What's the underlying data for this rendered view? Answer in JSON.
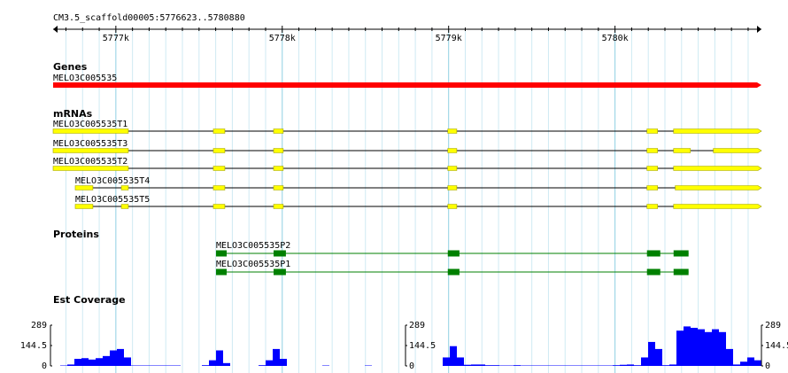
{
  "ruler": {
    "label": "CM3.5_scaffold00005:5776623..5780880",
    "start": 5776623,
    "end": 5780880,
    "ticks": [
      {
        "value": 5777000,
        "label": "5777k"
      },
      {
        "value": 5778000,
        "label": "5778k"
      },
      {
        "value": 5779000,
        "label": "5779k"
      },
      {
        "value": 5780000,
        "label": "5780k"
      }
    ],
    "minor_ticks": [
      5776700,
      5776800,
      5776900,
      5777100,
      5777200,
      5777300,
      5777400,
      5777500,
      5777600,
      5777700,
      5777800,
      5777900,
      5778100,
      5778200,
      5778300,
      5778400,
      5778500,
      5778600,
      5778700,
      5778800,
      5778900,
      5779100,
      5779200,
      5779300,
      5779400,
      5779500,
      5779600,
      5779700,
      5779800,
      5779900,
      5780100,
      5780200,
      5780300,
      5780400,
      5780500,
      5780600,
      5780700,
      5780800
    ]
  },
  "tracks": {
    "genes": {
      "title": "Genes",
      "color": "#ff0000",
      "features": [
        {
          "name": "MELO3C005535",
          "start": 5776623,
          "end": 5780880
        }
      ]
    },
    "mrnas": {
      "title": "mRNAs",
      "color": "#ffff00",
      "features": [
        {
          "name": "MELO3C005535T1",
          "exons": [
            [
              5776623,
              5777075
            ],
            [
              5777586,
              5777655
            ],
            [
              5777948,
              5778006
            ],
            [
              5778995,
              5779049
            ],
            [
              5780192,
              5780256
            ],
            [
              5780352,
              5780880
            ]
          ]
        },
        {
          "name": "MELO3C005535T3",
          "exons": [
            [
              5776623,
              5777075
            ],
            [
              5777586,
              5777655
            ],
            [
              5777948,
              5778006
            ],
            [
              5778995,
              5779049
            ],
            [
              5780192,
              5780256
            ],
            [
              5780352,
              5780453
            ],
            [
              5780591,
              5780880
            ]
          ]
        },
        {
          "name": "MELO3C005535T2",
          "exons": [
            [
              5776623,
              5777075
            ],
            [
              5777586,
              5777655
            ],
            [
              5777948,
              5778006
            ],
            [
              5778995,
              5779049
            ],
            [
              5780192,
              5780256
            ],
            [
              5780352,
              5780880
            ]
          ]
        },
        {
          "name": "MELO3C005535T4",
          "exons": [
            [
              5776756,
              5776862
            ],
            [
              5777033,
              5777075
            ],
            [
              5777586,
              5777655
            ],
            [
              5777948,
              5778006
            ],
            [
              5778995,
              5779049
            ],
            [
              5780192,
              5780256
            ],
            [
              5780362,
              5780880
            ]
          ]
        },
        {
          "name": "MELO3C005535T5",
          "exons": [
            [
              5776756,
              5776862
            ],
            [
              5777033,
              5777075
            ],
            [
              5777586,
              5777655
            ],
            [
              5777948,
              5778006
            ],
            [
              5778995,
              5779049
            ],
            [
              5780192,
              5780256
            ],
            [
              5780352,
              5780880
            ]
          ]
        }
      ]
    },
    "proteins": {
      "title": "Proteins",
      "color": "#008000",
      "features": [
        {
          "name": "MELO3C005535P2",
          "segments": [
            [
              5777602,
              5777666
            ],
            [
              5777948,
              5778022
            ],
            [
              5778995,
              5779065
            ],
            [
              5780192,
              5780272
            ],
            [
              5780352,
              5780442
            ]
          ]
        },
        {
          "name": "MELO3C005535P1",
          "segments": [
            [
              5777602,
              5777666
            ],
            [
              5777948,
              5778022
            ],
            [
              5778995,
              5779065
            ],
            [
              5780192,
              5780272
            ],
            [
              5780352,
              5780442
            ]
          ]
        }
      ]
    },
    "coverage": {
      "title": "Est Coverage",
      "color": "#0000ff",
      "ylim": [
        0,
        289
      ],
      "yticks": [
        289,
        144.5,
        0
      ],
      "values": [
        0,
        3,
        10,
        50,
        55,
        45,
        55,
        70,
        110,
        120,
        60,
        3,
        3,
        3,
        3,
        3,
        3,
        3,
        0,
        0,
        0,
        5,
        40,
        110,
        20,
        0,
        0,
        0,
        0,
        5,
        40,
        120,
        50,
        0,
        0,
        0,
        0,
        0,
        3,
        0,
        0,
        0,
        0,
        0,
        3,
        0,
        0,
        0,
        0,
        0,
        0,
        0,
        0,
        0,
        0,
        60,
        140,
        60,
        8,
        10,
        10,
        5,
        5,
        3,
        3,
        5,
        3,
        3,
        3,
        3,
        3,
        3,
        3,
        3,
        3,
        3,
        3,
        3,
        3,
        5,
        8,
        10,
        5,
        60,
        170,
        120,
        5,
        10,
        250,
        280,
        270,
        260,
        240,
        260,
        240,
        120,
        10,
        30,
        60,
        40
      ]
    }
  }
}
